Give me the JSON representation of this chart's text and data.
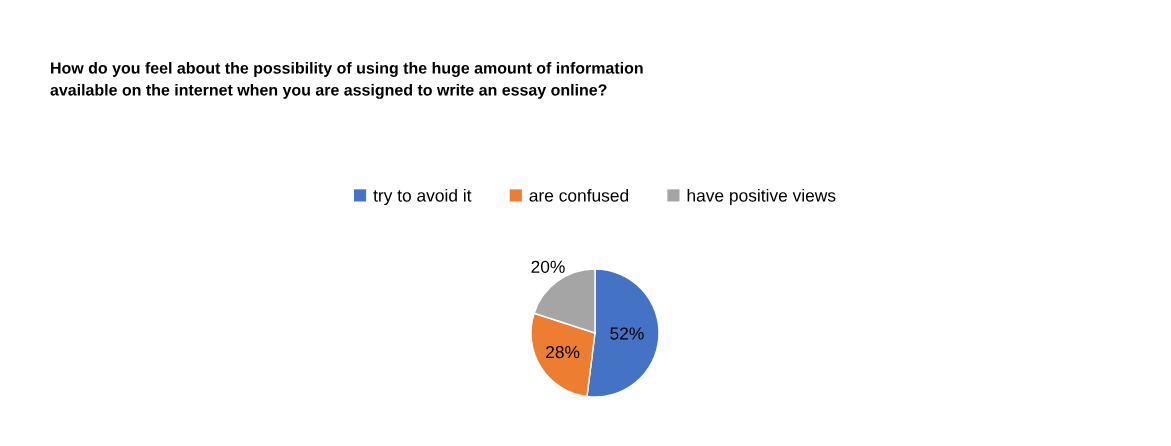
{
  "chart_data": {
    "type": "pie",
    "title": "How do you feel about the possibility of using the huge amount of information\navailable on the internet when you are assigned to write an essay online?",
    "categories": [
      "try to avoid it",
      "are confused",
      "have positive views"
    ],
    "values": [
      52,
      28,
      20
    ],
    "colors": [
      "#4472c4",
      "#ed7d31",
      "#a5a5a5"
    ],
    "value_labels": [
      "52%",
      "28%",
      "20%"
    ],
    "legend": "top"
  }
}
